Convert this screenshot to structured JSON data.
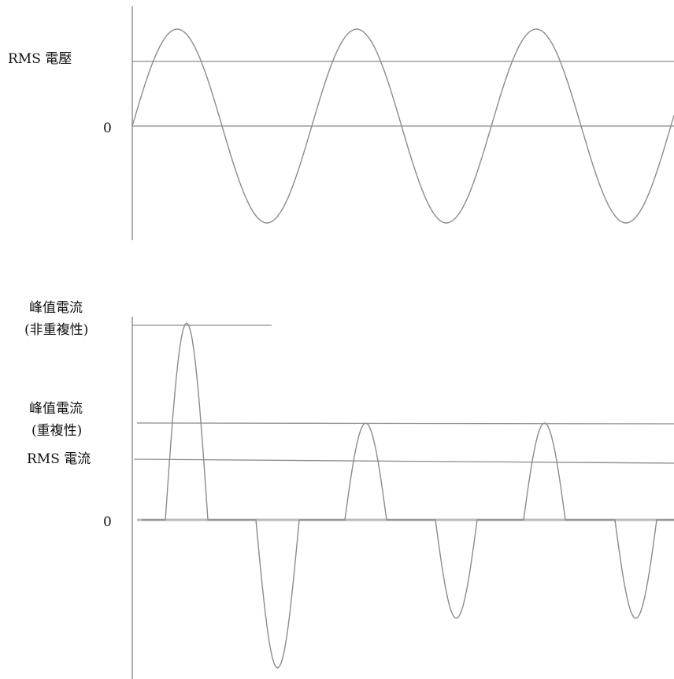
{
  "top_panel": {
    "labels": {
      "rms_voltage": "RMS 電壓",
      "zero": "0"
    }
  },
  "bottom_panel": {
    "labels": {
      "peak_current_nonrep_line1": "峰值電流",
      "peak_current_nonrep_line2": "(非重複性)",
      "peak_current_rep_line1": "峰值電流",
      "peak_current_rep_line2": "(重複性)",
      "rms_current": "RMS 電流",
      "zero": "0"
    }
  }
}
